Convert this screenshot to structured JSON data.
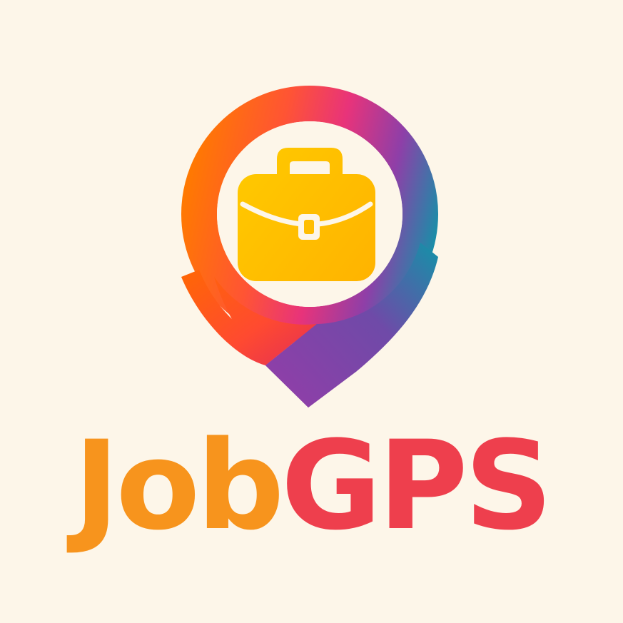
{
  "brand": {
    "name_part_1": "Job",
    "name_part_2": "GPS"
  },
  "icons": {
    "pin": "map-pin-icon",
    "briefcase": "briefcase-icon"
  },
  "colors": {
    "background": "#fdf6e9",
    "job_text": "#f7941d",
    "gps_text": "#ee3f4d",
    "briefcase": "#ffc400",
    "pin_orange": "#ff6a13",
    "pin_magenta": "#e8337a",
    "pin_purple": "#8e3fa8",
    "pin_teal": "#1591a8"
  }
}
